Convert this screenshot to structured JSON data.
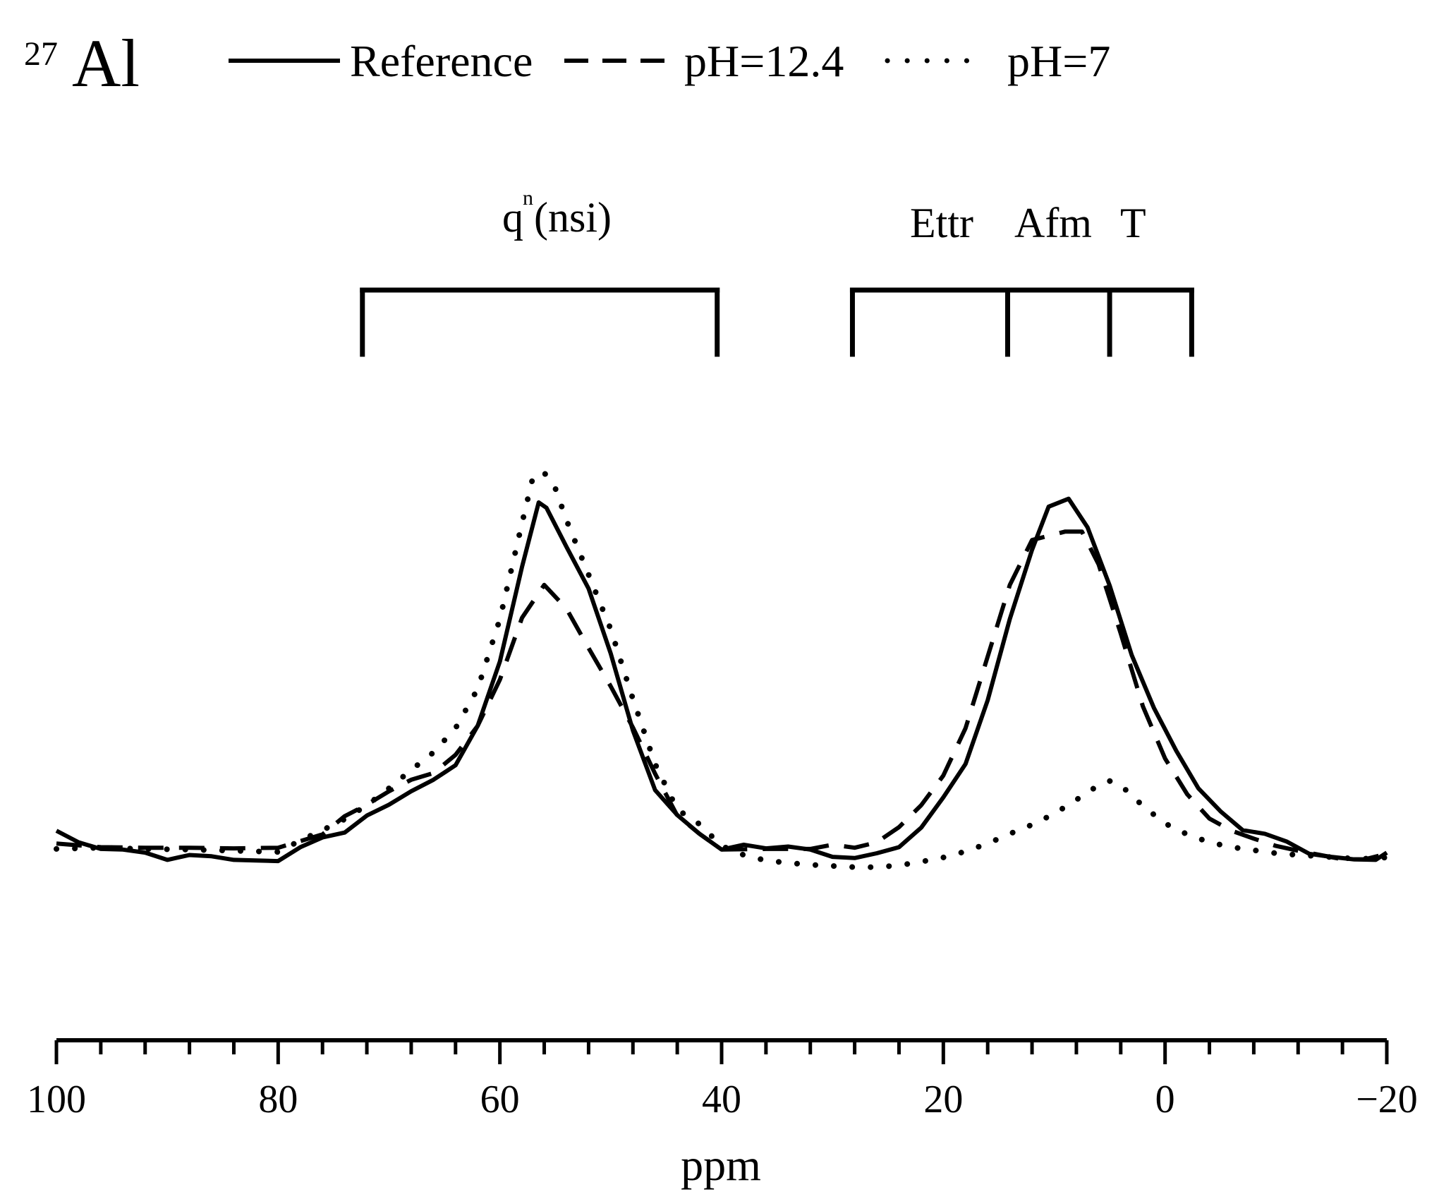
{
  "chart_data": {
    "type": "line",
    "title": "Al",
    "title_superscript": "27",
    "xlabel": "ppm",
    "ylabel": "",
    "xlim": [
      100,
      -20
    ],
    "ylim": [
      0,
      100
    ],
    "x_reversed": true,
    "x_ticks": [
      100,
      80,
      60,
      40,
      20,
      0,
      -20
    ],
    "x_tick_labels": [
      "100",
      "80",
      "60",
      "40",
      "20",
      "0",
      "−20"
    ],
    "minor_tick_step": 4,
    "y_axis_visible": false,
    "legend": {
      "position": "top",
      "entries": [
        {
          "label": "Reference",
          "style": "solid"
        },
        {
          "label": "pH=12.4",
          "style": "dashed"
        },
        {
          "label": "pH=7",
          "style": "dotted"
        }
      ]
    },
    "annotations": [
      {
        "label": "q",
        "superscript": "n",
        "suffix": "(nsi)",
        "x_center": 56.4
      },
      {
        "label": "Ettr",
        "x_center": 20.2
      },
      {
        "label": "Afm",
        "x_center": 9.2
      },
      {
        "label": "T",
        "x_center": 2.6
      }
    ],
    "brackets": [
      {
        "ticks": [
          72.4,
          40.4
        ]
      },
      {
        "ticks": [
          28.2,
          14.2,
          5.0,
          -2.4
        ]
      }
    ],
    "series": [
      {
        "name": "Reference",
        "style": "solid",
        "points": [
          [
            100,
            20.1
          ],
          [
            98,
            18.2
          ],
          [
            96,
            17.1
          ],
          [
            94,
            17.0
          ],
          [
            92,
            16.5
          ],
          [
            90,
            15.3
          ],
          [
            88,
            16.1
          ],
          [
            86,
            15.9
          ],
          [
            84,
            15.3
          ],
          [
            82,
            15.2
          ],
          [
            80,
            15.1
          ],
          [
            78,
            17.4
          ],
          [
            76,
            19.0
          ],
          [
            74,
            19.8
          ],
          [
            72,
            22.6
          ],
          [
            70,
            24.4
          ],
          [
            68,
            26.6
          ],
          [
            66,
            28.5
          ],
          [
            64,
            30.9
          ],
          [
            62,
            37.4
          ],
          [
            60,
            48.0
          ],
          [
            58,
            63.6
          ],
          [
            56.5,
            74.2
          ],
          [
            55.8,
            73.3
          ],
          [
            54,
            66.9
          ],
          [
            52,
            60.0
          ],
          [
            50,
            49.3
          ],
          [
            48,
            36.6
          ],
          [
            46,
            26.8
          ],
          [
            44,
            22.7
          ],
          [
            42,
            19.6
          ],
          [
            40,
            17.0
          ],
          [
            38,
            17.8
          ],
          [
            36,
            17.2
          ],
          [
            34,
            17.5
          ],
          [
            32,
            17.0
          ],
          [
            30,
            15.8
          ],
          [
            28,
            15.6
          ],
          [
            26,
            16.4
          ],
          [
            24,
            17.4
          ],
          [
            22,
            20.6
          ],
          [
            20,
            25.6
          ],
          [
            18,
            31.1
          ],
          [
            16,
            41.6
          ],
          [
            14,
            55.0
          ],
          [
            12,
            66.4
          ],
          [
            10.5,
            73.5
          ],
          [
            8.7,
            74.8
          ],
          [
            7,
            70.1
          ],
          [
            5,
            60.5
          ],
          [
            3,
            49.0
          ],
          [
            1,
            40.3
          ],
          [
            -1,
            33.3
          ],
          [
            -3,
            27.1
          ],
          [
            -5,
            23.3
          ],
          [
            -7,
            20.2
          ],
          [
            -9,
            19.6
          ],
          [
            -11,
            18.3
          ],
          [
            -13,
            16.3
          ],
          [
            -15,
            15.8
          ],
          [
            -17,
            15.4
          ],
          [
            -19,
            15.3
          ],
          [
            -20,
            16.5
          ]
        ]
      },
      {
        "name": "pH=12.4",
        "style": "dashed",
        "points": [
          [
            100,
            18.0
          ],
          [
            96,
            17.4
          ],
          [
            92,
            17.3
          ],
          [
            88,
            17.3
          ],
          [
            84,
            17.2
          ],
          [
            80,
            17.3
          ],
          [
            76,
            19.5
          ],
          [
            74,
            22.5
          ],
          [
            72,
            24.4
          ],
          [
            70,
            26.6
          ],
          [
            68,
            28.5
          ],
          [
            66,
            29.6
          ],
          [
            64,
            32.6
          ],
          [
            62,
            37.4
          ],
          [
            60,
            45.0
          ],
          [
            58,
            55.2
          ],
          [
            56,
            60.6
          ],
          [
            54,
            56.7
          ],
          [
            52,
            50.2
          ],
          [
            50,
            43.9
          ],
          [
            48,
            37.1
          ],
          [
            46,
            29.5
          ],
          [
            44,
            22.6
          ],
          [
            42,
            19.6
          ],
          [
            40,
            17.0
          ],
          [
            36,
            17.1
          ],
          [
            32,
            17.1
          ],
          [
            30,
            17.8
          ],
          [
            28,
            17.3
          ],
          [
            26,
            18.2
          ],
          [
            24,
            20.7
          ],
          [
            22,
            24.3
          ],
          [
            20,
            29.2
          ],
          [
            18,
            37.0
          ],
          [
            16,
            48.8
          ],
          [
            14,
            60.6
          ],
          [
            12,
            68.0
          ],
          [
            9,
            69.4
          ],
          [
            7.5,
            69.4
          ],
          [
            6,
            64.0
          ],
          [
            4,
            52.6
          ],
          [
            2,
            40.6
          ],
          [
            0,
            32.0
          ],
          [
            -2,
            26.1
          ],
          [
            -4,
            22.1
          ],
          [
            -6,
            20.1
          ],
          [
            -8,
            18.8
          ],
          [
            -10,
            17.6
          ],
          [
            -12,
            16.8
          ],
          [
            -14,
            16.1
          ],
          [
            -16,
            15.4
          ],
          [
            -18,
            15.4
          ],
          [
            -20,
            16.3
          ]
        ]
      },
      {
        "name": "pH=7",
        "style": "dotted",
        "points": [
          [
            100,
            17.1
          ],
          [
            96,
            17.3
          ],
          [
            92,
            17.1
          ],
          [
            88,
            17.0
          ],
          [
            84,
            16.8
          ],
          [
            80,
            16.6
          ],
          [
            78,
            18.5
          ],
          [
            76,
            20.2
          ],
          [
            74,
            22.0
          ],
          [
            72,
            24.3
          ],
          [
            70,
            27.1
          ],
          [
            68,
            30.1
          ],
          [
            66,
            33.0
          ],
          [
            64,
            37.0
          ],
          [
            62,
            43.5
          ],
          [
            60,
            55.0
          ],
          [
            58,
            70.8
          ],
          [
            57,
            78.5
          ],
          [
            56,
            79.1
          ],
          [
            55,
            76.5
          ],
          [
            54,
            71.3
          ],
          [
            52,
            62.3
          ],
          [
            50,
            53.3
          ],
          [
            48,
            41.8
          ],
          [
            46,
            31.1
          ],
          [
            44,
            23.6
          ],
          [
            42,
            21.2
          ],
          [
            40,
            17.6
          ],
          [
            38,
            16.1
          ],
          [
            36,
            15.2
          ],
          [
            34,
            14.8
          ],
          [
            32,
            14.5
          ],
          [
            30,
            14.3
          ],
          [
            28,
            14.1
          ],
          [
            26,
            14.1
          ],
          [
            24,
            14.4
          ],
          [
            22,
            15.0
          ],
          [
            20,
            15.7
          ],
          [
            18,
            16.7
          ],
          [
            16,
            18.0
          ],
          [
            14,
            19.6
          ],
          [
            12,
            21.1
          ],
          [
            10,
            22.9
          ],
          [
            8,
            25.2
          ],
          [
            6,
            27.6
          ],
          [
            5,
            28.3
          ],
          [
            4,
            27.6
          ],
          [
            2,
            24.2
          ],
          [
            0,
            21.3
          ],
          [
            -2,
            19.5
          ],
          [
            -4,
            18.2
          ],
          [
            -6,
            17.4
          ],
          [
            -8,
            16.9
          ],
          [
            -10,
            16.4
          ],
          [
            -12,
            16.1
          ],
          [
            -14,
            15.9
          ],
          [
            -16,
            15.6
          ],
          [
            -18,
            15.5
          ],
          [
            -20,
            15.7
          ]
        ]
      }
    ]
  }
}
